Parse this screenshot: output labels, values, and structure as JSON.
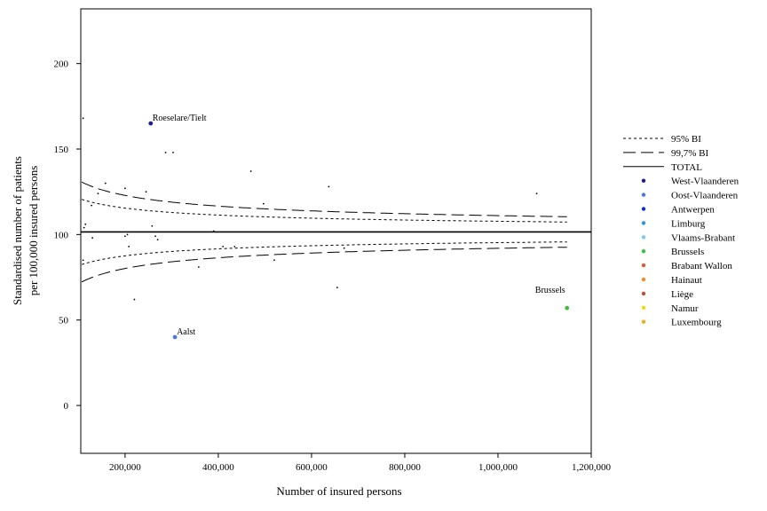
{
  "chart_data": {
    "type": "scatter",
    "subtype": "funnel-plot",
    "title": "",
    "xlabel": "Number of insured persons",
    "ylabel_lines": [
      "Standardised number of patients",
      "per 100,000 insured persons"
    ],
    "xlim": [
      105000,
      1200000
    ],
    "ylim": [
      -28,
      232
    ],
    "x_ticks": [
      {
        "value": 200000,
        "label": "200,000"
      },
      {
        "value": 400000,
        "label": "400,000"
      },
      {
        "value": 600000,
        "label": "600,000"
      },
      {
        "value": 800000,
        "label": "800,000"
      },
      {
        "value": 1000000,
        "label": "1,000,000"
      },
      {
        "value": 1200000,
        "label": "1,200,000"
      }
    ],
    "y_ticks": [
      {
        "value": 0,
        "label": "0"
      },
      {
        "value": 50,
        "label": "50"
      },
      {
        "value": 100,
        "label": "100"
      },
      {
        "value": 150,
        "label": "150"
      },
      {
        "value": 200,
        "label": "200"
      }
    ],
    "grid": false,
    "total": 101.5,
    "limits": [
      {
        "name": "95% BI",
        "style": "short-dash",
        "z": 1.96,
        "upper": [
          [
            107000,
            187
          ],
          [
            150000,
            172
          ],
          [
            200000,
            161
          ],
          [
            300000,
            150
          ],
          [
            400000,
            144
          ],
          [
            600000,
            137
          ],
          [
            800000,
            133
          ],
          [
            1000000,
            130
          ],
          [
            1150000,
            128
          ]
        ],
        "lower": [
          [
            107000,
            17
          ],
          [
            150000,
            31
          ],
          [
            200000,
            42
          ],
          [
            300000,
            53
          ],
          [
            400000,
            59
          ],
          [
            600000,
            66
          ],
          [
            800000,
            70
          ],
          [
            1000000,
            73
          ],
          [
            1150000,
            75
          ]
        ]
      },
      {
        "name": "99,7% BI",
        "style": "long-dash",
        "z": 3,
        "upper": [
          [
            107000,
            229
          ],
          [
            150000,
            204
          ],
          [
            200000,
            189
          ],
          [
            300000,
            172
          ],
          [
            400000,
            163
          ],
          [
            600000,
            152
          ],
          [
            800000,
            147
          ],
          [
            1000000,
            143
          ],
          [
            1150000,
            141
          ]
        ],
        "lower": [
          [
            107000,
            -26
          ],
          [
            150000,
            -1
          ],
          [
            200000,
            14
          ],
          [
            300000,
            31
          ],
          [
            400000,
            40
          ],
          [
            600000,
            51
          ],
          [
            800000,
            56
          ],
          [
            1000000,
            60
          ],
          [
            1150000,
            62
          ]
        ]
      }
    ],
    "legend": {
      "position": "right",
      "entries": [
        {
          "label": "95% BI",
          "kind": "line",
          "style": "short-dash",
          "color": "#000000"
        },
        {
          "label": "99,7% BI",
          "kind": "line",
          "style": "long-dash",
          "color": "#000000"
        },
        {
          "label": "TOTAL",
          "kind": "line",
          "style": "solid",
          "color": "#000000"
        },
        {
          "label": "West-Vlaanderen",
          "kind": "dot",
          "color": "#1c1c8c"
        },
        {
          "label": "Oost-Vlaanderen",
          "kind": "dot",
          "color": "#4a78d8"
        },
        {
          "label": "Antwerpen",
          "kind": "dot",
          "color": "#0a2ae6"
        },
        {
          "label": "Limburg",
          "kind": "dot",
          "color": "#2a96e0"
        },
        {
          "label": "Vlaams-Brabant",
          "kind": "dot",
          "color": "#7cc8f0"
        },
        {
          "label": "Brussels",
          "kind": "dot",
          "color": "#3cc03c"
        },
        {
          "label": "Brabant Wallon",
          "kind": "dot",
          "color": "#d8622c"
        },
        {
          "label": "Hainaut",
          "kind": "dot",
          "color": "#f08c20"
        },
        {
          "label": "Liège",
          "kind": "dot",
          "color": "#c0502c"
        },
        {
          "label": "Namur",
          "kind": "dot",
          "color": "#f0d800"
        },
        {
          "label": "Luxembourg",
          "kind": "dot",
          "color": "#f0a820"
        }
      ]
    },
    "points": [
      {
        "x": 255000,
        "y": 165,
        "province": "West-Vlaanderen",
        "label": "Roeselare/Tielt"
      },
      {
        "x": 307000,
        "y": 40,
        "province": "Oost-Vlaanderen",
        "label": "Aalst"
      },
      {
        "x": 1148000,
        "y": 57,
        "province": "Brussels",
        "label": "Brussels"
      },
      {
        "x": 110000,
        "y": 168
      },
      {
        "x": 112000,
        "y": 104
      },
      {
        "x": 115000,
        "y": 106
      },
      {
        "x": 110000,
        "y": 85
      },
      {
        "x": 128000,
        "y": 117
      },
      {
        "x": 130000,
        "y": 98
      },
      {
        "x": 142000,
        "y": 124
      },
      {
        "x": 158000,
        "y": 130
      },
      {
        "x": 200000,
        "y": 127
      },
      {
        "x": 200000,
        "y": 99
      },
      {
        "x": 205000,
        "y": 100
      },
      {
        "x": 208000,
        "y": 93
      },
      {
        "x": 220000,
        "y": 62
      },
      {
        "x": 245000,
        "y": 125
      },
      {
        "x": 258000,
        "y": 105
      },
      {
        "x": 265000,
        "y": 99
      },
      {
        "x": 270000,
        "y": 97
      },
      {
        "x": 287000,
        "y": 148
      },
      {
        "x": 303000,
        "y": 148
      },
      {
        "x": 358000,
        "y": 81
      },
      {
        "x": 390000,
        "y": 102
      },
      {
        "x": 410000,
        "y": 93
      },
      {
        "x": 435000,
        "y": 93
      },
      {
        "x": 470000,
        "y": 137
      },
      {
        "x": 497000,
        "y": 118
      },
      {
        "x": 520000,
        "y": 85
      },
      {
        "x": 637000,
        "y": 128
      },
      {
        "x": 655000,
        "y": 69
      },
      {
        "x": 670000,
        "y": 92
      },
      {
        "x": 1083000,
        "y": 124
      }
    ]
  }
}
